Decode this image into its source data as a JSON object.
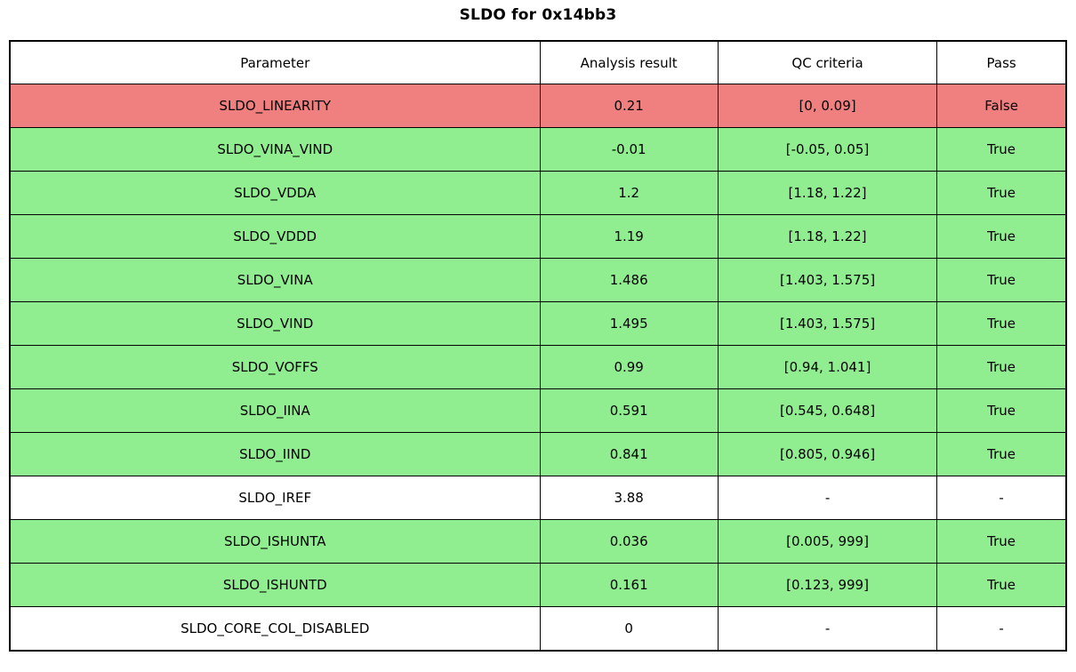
{
  "title": "SLDO for 0x14bb3",
  "colors": {
    "pass_green": "#90ee90",
    "fail_red": "#f08080",
    "neutral_white": "#ffffff",
    "border_black": "#000000"
  },
  "chart_data": {
    "type": "table",
    "title": "SLDO for 0x14bb3",
    "columns": [
      "Parameter",
      "Analysis result",
      "QC criteria",
      "Pass"
    ],
    "rows": [
      {
        "parameter": "SLDO_LINEARITY",
        "result": "0.21",
        "criteria": "[0, 0.09]",
        "pass": "False",
        "status": "fail"
      },
      {
        "parameter": "SLDO_VINA_VIND",
        "result": "-0.01",
        "criteria": "[-0.05, 0.05]",
        "pass": "True",
        "status": "pass"
      },
      {
        "parameter": "SLDO_VDDA",
        "result": "1.2",
        "criteria": "[1.18, 1.22]",
        "pass": "True",
        "status": "pass"
      },
      {
        "parameter": "SLDO_VDDD",
        "result": "1.19",
        "criteria": "[1.18, 1.22]",
        "pass": "True",
        "status": "pass"
      },
      {
        "parameter": "SLDO_VINA",
        "result": "1.486",
        "criteria": "[1.403, 1.575]",
        "pass": "True",
        "status": "pass"
      },
      {
        "parameter": "SLDO_VIND",
        "result": "1.495",
        "criteria": "[1.403, 1.575]",
        "pass": "True",
        "status": "pass"
      },
      {
        "parameter": "SLDO_VOFFS",
        "result": "0.99",
        "criteria": "[0.94, 1.041]",
        "pass": "True",
        "status": "pass"
      },
      {
        "parameter": "SLDO_IINA",
        "result": "0.591",
        "criteria": "[0.545, 0.648]",
        "pass": "True",
        "status": "pass"
      },
      {
        "parameter": "SLDO_IIND",
        "result": "0.841",
        "criteria": "[0.805, 0.946]",
        "pass": "True",
        "status": "pass"
      },
      {
        "parameter": "SLDO_IREF",
        "result": "3.88",
        "criteria": "-",
        "pass": "-",
        "status": "neutral"
      },
      {
        "parameter": "SLDO_ISHUNTA",
        "result": "0.036",
        "criteria": "[0.005, 999]",
        "pass": "True",
        "status": "pass"
      },
      {
        "parameter": "SLDO_ISHUNTD",
        "result": "0.161",
        "criteria": "[0.123, 999]",
        "pass": "True",
        "status": "pass"
      },
      {
        "parameter": "SLDO_CORE_COL_DISABLED",
        "result": "0",
        "criteria": "-",
        "pass": "-",
        "status": "neutral"
      }
    ]
  }
}
